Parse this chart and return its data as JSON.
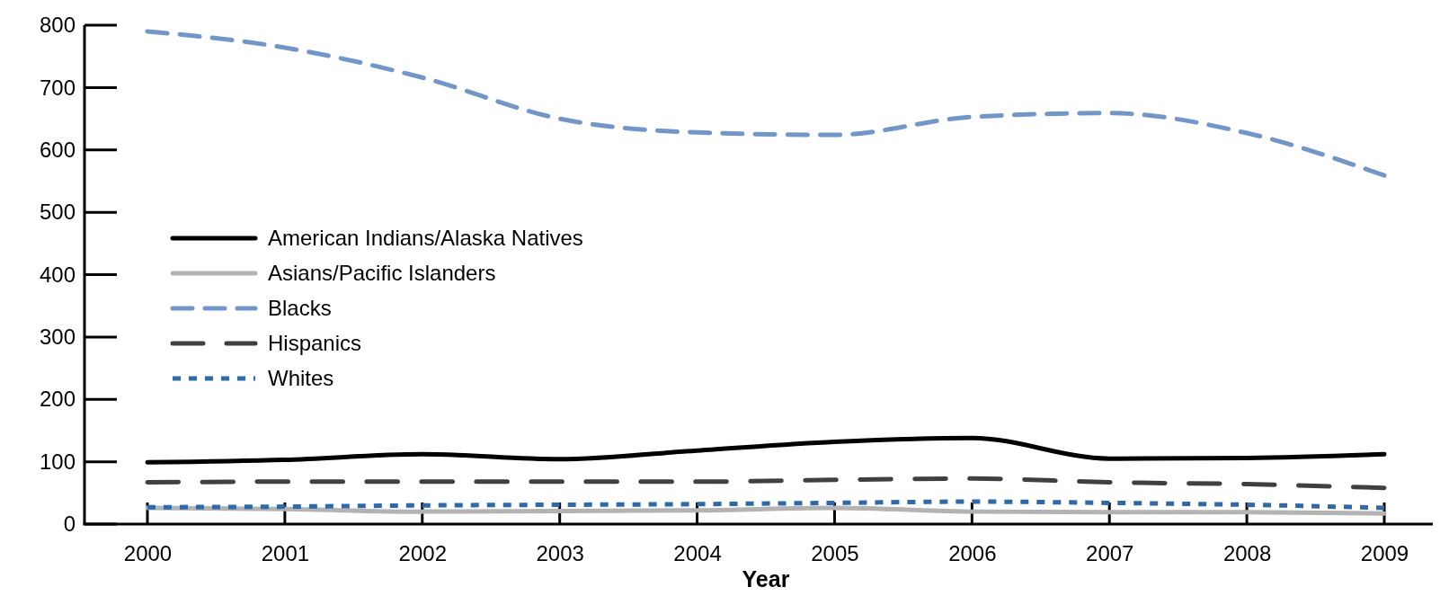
{
  "chart_data": {
    "type": "line",
    "xlabel": "Year",
    "categories": [
      "2000",
      "2001",
      "2002",
      "2003",
      "2004",
      "2005",
      "2006",
      "2007",
      "2008",
      "2009"
    ],
    "ylim": [
      0,
      800
    ],
    "yticks": [
      0,
      100,
      200,
      300,
      400,
      500,
      600,
      700,
      800
    ],
    "grid": false,
    "legend": "left",
    "series": [
      {
        "name": "American Indians/Alaska Natives",
        "color": "#000000",
        "line_style": "solid",
        "values": [
          99,
          103,
          112,
          104,
          118,
          132,
          138,
          105,
          106,
          112
        ]
      },
      {
        "name": "Asians/Pacific Islanders",
        "color": "#b3b3b3",
        "line_style": "solid",
        "values": [
          26,
          24,
          20,
          21,
          22,
          26,
          20,
          19,
          19,
          17
        ]
      },
      {
        "name": "Blacks",
        "color": "#7396c8",
        "line_style": "dashed",
        "values": [
          790,
          764,
          716,
          650,
          628,
          624,
          653,
          659,
          627,
          559
        ]
      },
      {
        "name": "Hispanics",
        "color": "#404040",
        "line_style": "longdash",
        "values": [
          67,
          68,
          68,
          68,
          68,
          71,
          73,
          67,
          64,
          58
        ]
      },
      {
        "name": "Whites",
        "color": "#2e6aa8",
        "line_style": "dotted",
        "values": [
          27,
          28,
          30,
          31,
          32,
          34,
          36,
          34,
          31,
          26
        ]
      }
    ]
  }
}
